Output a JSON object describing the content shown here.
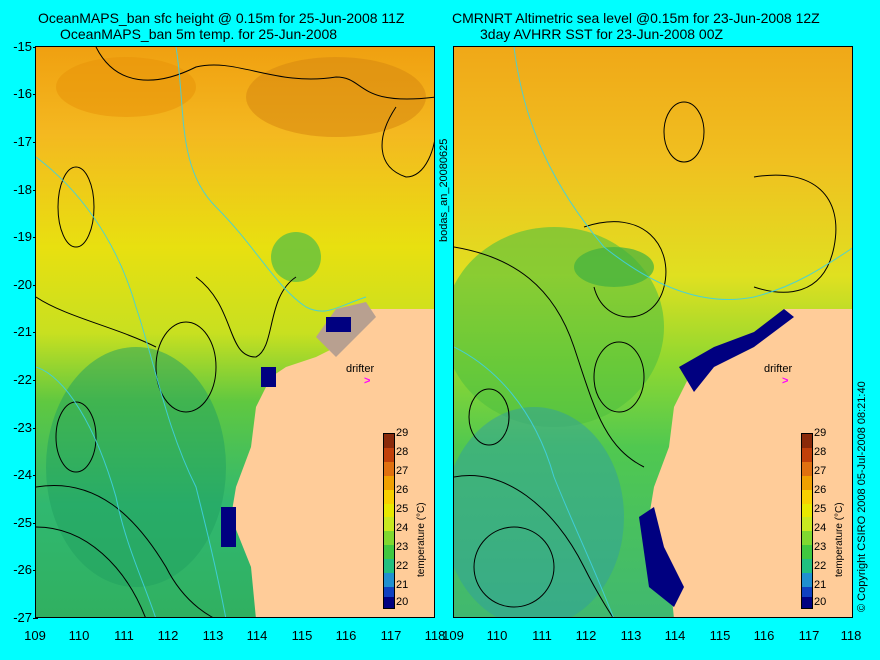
{
  "left_panel": {
    "title_line1": "OceanMAPS_ban sfc height @ 0.15m for 25-Jun-2008 11Z",
    "title_line2": "OceanMAPS_ban 5m temp. for 25-Jun-2008",
    "drifter_label": "drifter",
    "colorbar_title": "temperature (°C)",
    "colorbar_ticks": [
      "29",
      "28",
      "27",
      "26",
      "25",
      "24",
      "23",
      "22",
      "21",
      "20"
    ]
  },
  "right_panel": {
    "title_line1": "CMRNRT Altimetric sea level  @0.15m  for 23-Jun-2008 12Z",
    "title_line2": "3day AVHRR SST for 23-Jun-2008 00Z",
    "drifter_label": "drifter",
    "colorbar_title": "temperature (°C)",
    "colorbar_ticks": [
      "29",
      "28",
      "27",
      "26",
      "25",
      "24",
      "23",
      "22",
      "21",
      "20"
    ]
  },
  "center_label": "bodas_an_20080625",
  "right_side_label": "© Copyright CSIRO 2008   05-Jul-2008 08:21:40",
  "y_axis_ticks": [
    "-15",
    "-16",
    "-17",
    "-18",
    "-19",
    "-20",
    "-21",
    "-22",
    "-23",
    "-24",
    "-25",
    "-26",
    "-27"
  ],
  "x_axis_ticks": [
    "109",
    "110",
    "111",
    "112",
    "113",
    "114",
    "115",
    "116",
    "117",
    "118"
  ],
  "colors": {
    "background": "#00ffff",
    "land": "#ffcc99",
    "colorbar": [
      "#8a2a0a",
      "#c2400a",
      "#e07010",
      "#f0a000",
      "#f8d000",
      "#e8e800",
      "#c8e820",
      "#80d830",
      "#40c840",
      "#20c080",
      "#2090d0",
      "#1040c0",
      "#000080"
    ]
  }
}
